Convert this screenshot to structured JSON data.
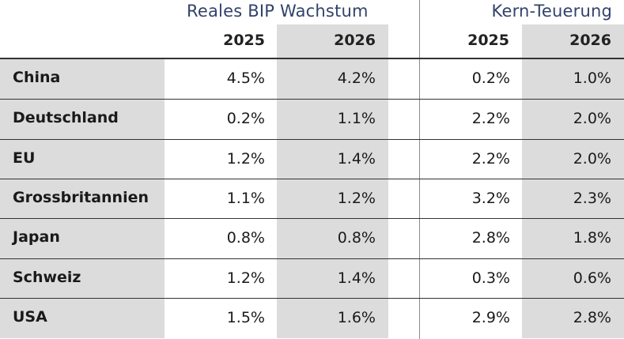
{
  "table": {
    "groups": {
      "bip": "Reales BIP Wachstum",
      "kern": "Kern-Teuerung"
    },
    "years": [
      "2025",
      "2026",
      "2025",
      "2026"
    ],
    "rows": [
      {
        "country": "China",
        "bip_2025": "4.5%",
        "bip_2026": "4.2%",
        "kern_2025": "0.2%",
        "kern_2026": "1.0%"
      },
      {
        "country": "Deutschland",
        "bip_2025": "0.2%",
        "bip_2026": "1.1%",
        "kern_2025": "2.2%",
        "kern_2026": "2.0%"
      },
      {
        "country": "EU",
        "bip_2025": "1.2%",
        "bip_2026": "1.4%",
        "kern_2025": "2.2%",
        "kern_2026": "2.0%"
      },
      {
        "country": "Grossbritannien",
        "bip_2025": "1.1%",
        "bip_2026": "1.2%",
        "kern_2025": "3.2%",
        "kern_2026": "2.3%"
      },
      {
        "country": "Japan",
        "bip_2025": "0.8%",
        "bip_2026": "0.8%",
        "kern_2025": "2.8%",
        "kern_2026": "1.8%"
      },
      {
        "country": "Schweiz",
        "bip_2025": "1.2%",
        "bip_2026": "1.4%",
        "kern_2025": "0.3%",
        "kern_2026": "0.6%"
      },
      {
        "country": "USA",
        "bip_2025": "1.5%",
        "bip_2026": "1.6%",
        "kern_2025": "2.9%",
        "kern_2026": "2.8%"
      }
    ]
  },
  "colors": {
    "header_text": "#33426b",
    "shade": "#dcdcdc"
  }
}
